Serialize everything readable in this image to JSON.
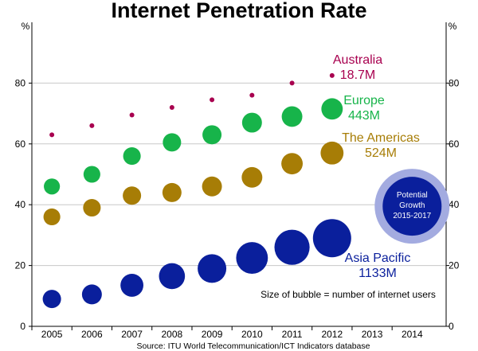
{
  "chart_data": {
    "type": "scatter",
    "subtype": "bubble",
    "title": "Internet Penetration Rate",
    "ylabel_left": "%",
    "ylabel_right": "%",
    "ylim": [
      0,
      100
    ],
    "yticks": [
      0,
      20,
      40,
      60,
      80
    ],
    "ytick_labels": [
      "0",
      "20",
      "40",
      "60",
      "80"
    ],
    "x": [
      2005,
      2006,
      2007,
      2008,
      2009,
      2010,
      2011,
      2012,
      2013,
      2014
    ],
    "xtick_labels": [
      "2005",
      "2006",
      "2007",
      "2008",
      "2009",
      "2010",
      "2011",
      "2012",
      "2013",
      "2014"
    ],
    "grid": true,
    "series": [
      {
        "name": "Australia",
        "label_line1": "Australia",
        "label_line2": "18.7M",
        "color": "#a8004f",
        "values": [
          63,
          66,
          69.5,
          72,
          74.5,
          76,
          80,
          82.5
        ],
        "bubble_users_m": 18.7
      },
      {
        "name": "Europe",
        "label_line1": "Europe",
        "label_line2": "443M",
        "color": "#17b44a",
        "values": [
          46,
          50,
          56,
          60.5,
          63,
          67,
          69,
          71.5
        ],
        "bubble_users_m": 443
      },
      {
        "name": "The Americas",
        "label_line1": "The Americas",
        "label_line2": "524M",
        "color": "#a77d06",
        "values": [
          36,
          39,
          43,
          44,
          46,
          49,
          53.5,
          57
        ],
        "bubble_users_m": 524
      },
      {
        "name": "Asia Pacific",
        "label_line1": "Asia Pacific",
        "label_line2": "1133M",
        "color": "#0a1f9c",
        "values": [
          9,
          10.5,
          13.5,
          16.5,
          19,
          22.5,
          26,
          29
        ],
        "bubble_users_m": 1133
      }
    ],
    "bubble_radii_relative": {
      "Australia": [
        0.08,
        0.08,
        0.08,
        0.08,
        0.08,
        0.08,
        0.08,
        0.08
      ],
      "Europe": [
        0.42,
        0.44,
        0.46,
        0.48,
        0.5,
        0.52,
        0.54,
        0.56
      ],
      "The Americas": [
        0.44,
        0.46,
        0.48,
        0.5,
        0.52,
        0.54,
        0.56,
        0.6
      ],
      "Asia Pacific": [
        0.48,
        0.52,
        0.6,
        0.68,
        0.75,
        0.83,
        0.92,
        1.0
      ]
    },
    "potential_growth": {
      "label_lines": [
        "Potential",
        "Growth",
        "2015-2017"
      ],
      "x": 2014,
      "y": 39.5
    },
    "annotation": "Size of bubble = number of internet users",
    "source": "Source:    ITU World Telecommunication/ICT Indicators database"
  },
  "colors": {
    "grid": "#c8c8c8",
    "axis": "#000000",
    "pg_inner": "#0a1f9c",
    "pg_outer": "#a3abe0"
  }
}
